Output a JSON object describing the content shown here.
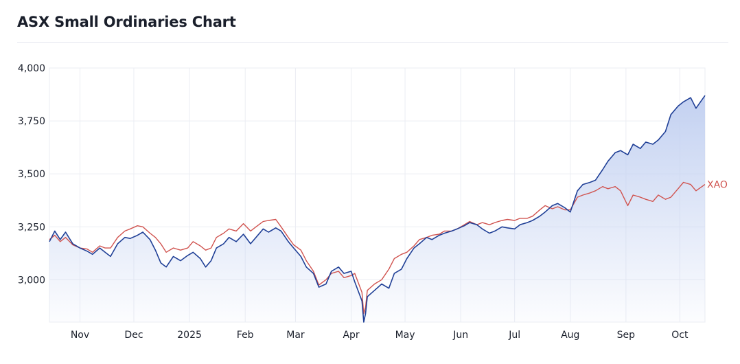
{
  "title": "ASX Small Ordinaries Chart",
  "chart_data": {
    "type": "area",
    "title": "ASX Small Ordinaries Chart",
    "xlabel": "",
    "ylabel": "",
    "x_range": [
      "2024-10-15",
      "2025-10-15"
    ],
    "ylim": [
      2800,
      4000
    ],
    "y_ticks": [
      {
        "value": 4000,
        "label": "4,000"
      },
      {
        "value": 3750,
        "label": "3,750"
      },
      {
        "value": 3500,
        "label": "3,500"
      },
      {
        "value": 3250,
        "label": "3,250"
      },
      {
        "value": 3000,
        "label": "3,000"
      }
    ],
    "x_ticks": [
      {
        "date": "2024-11-01",
        "label": "Nov"
      },
      {
        "date": "2024-12-01",
        "label": "Dec"
      },
      {
        "date": "2025-01-01",
        "label": "2025"
      },
      {
        "date": "2025-02-01",
        "label": "Feb"
      },
      {
        "date": "2025-03-01",
        "label": "Mar"
      },
      {
        "date": "2025-04-01",
        "label": "Apr"
      },
      {
        "date": "2025-05-01",
        "label": "May"
      },
      {
        "date": "2025-06-01",
        "label": "Jun"
      },
      {
        "date": "2025-07-01",
        "label": "Jul"
      },
      {
        "date": "2025-08-01",
        "label": "Aug"
      },
      {
        "date": "2025-09-01",
        "label": "Sep"
      },
      {
        "date": "2025-10-01",
        "label": "Oct"
      }
    ],
    "grid": true,
    "colors": {
      "main": "#1f3f96",
      "compare": "#d0534f",
      "fill_top": "#c3d1f1",
      "grid": "#ebedf3"
    },
    "series": [
      {
        "role": "main",
        "points": [
          [
            "2024-10-15",
            3180
          ],
          [
            "2024-10-18",
            3230
          ],
          [
            "2024-10-21",
            3190
          ],
          [
            "2024-10-24",
            3225
          ],
          [
            "2024-10-28",
            3170
          ],
          [
            "2024-11-01",
            3150
          ],
          [
            "2024-11-05",
            3135
          ],
          [
            "2024-11-08",
            3120
          ],
          [
            "2024-11-12",
            3150
          ],
          [
            "2024-11-15",
            3130
          ],
          [
            "2024-11-18",
            3110
          ],
          [
            "2024-11-22",
            3170
          ],
          [
            "2024-11-26",
            3200
          ],
          [
            "2024-11-29",
            3195
          ],
          [
            "2024-12-03",
            3210
          ],
          [
            "2024-12-06",
            3225
          ],
          [
            "2024-12-10",
            3190
          ],
          [
            "2024-12-13",
            3140
          ],
          [
            "2024-12-16",
            3080
          ],
          [
            "2024-12-19",
            3060
          ],
          [
            "2024-12-23",
            3110
          ],
          [
            "2024-12-27",
            3090
          ],
          [
            "2024-12-31",
            3115
          ],
          [
            "2025-01-03",
            3130
          ],
          [
            "2025-01-07",
            3100
          ],
          [
            "2025-01-10",
            3060
          ],
          [
            "2025-01-13",
            3090
          ],
          [
            "2025-01-16",
            3150
          ],
          [
            "2025-01-20",
            3170
          ],
          [
            "2025-01-23",
            3200
          ],
          [
            "2025-01-27",
            3180
          ],
          [
            "2025-01-31",
            3215
          ],
          [
            "2025-02-04",
            3170
          ],
          [
            "2025-02-07",
            3200
          ],
          [
            "2025-02-11",
            3240
          ],
          [
            "2025-02-14",
            3225
          ],
          [
            "2025-02-18",
            3245
          ],
          [
            "2025-02-21",
            3230
          ],
          [
            "2025-02-25",
            3180
          ],
          [
            "2025-02-28",
            3150
          ],
          [
            "2025-03-04",
            3110
          ],
          [
            "2025-03-07",
            3060
          ],
          [
            "2025-03-11",
            3030
          ],
          [
            "2025-03-14",
            2965
          ],
          [
            "2025-03-18",
            2980
          ],
          [
            "2025-03-21",
            3040
          ],
          [
            "2025-03-25",
            3060
          ],
          [
            "2025-03-28",
            3030
          ],
          [
            "2025-04-01",
            3040
          ],
          [
            "2025-04-03",
            2990
          ],
          [
            "2025-04-07",
            2900
          ],
          [
            "2025-04-08",
            2790
          ],
          [
            "2025-04-09",
            2840
          ],
          [
            "2025-04-10",
            2920
          ],
          [
            "2025-04-14",
            2950
          ],
          [
            "2025-04-18",
            2980
          ],
          [
            "2025-04-22",
            2960
          ],
          [
            "2025-04-25",
            3030
          ],
          [
            "2025-04-29",
            3050
          ],
          [
            "2025-05-02",
            3100
          ],
          [
            "2025-05-06",
            3150
          ],
          [
            "2025-05-09",
            3170
          ],
          [
            "2025-05-13",
            3200
          ],
          [
            "2025-05-16",
            3190
          ],
          [
            "2025-05-20",
            3210
          ],
          [
            "2025-05-23",
            3220
          ],
          [
            "2025-05-27",
            3230
          ],
          [
            "2025-05-30",
            3240
          ],
          [
            "2025-06-03",
            3255
          ],
          [
            "2025-06-06",
            3270
          ],
          [
            "2025-06-10",
            3260
          ],
          [
            "2025-06-13",
            3240
          ],
          [
            "2025-06-17",
            3220
          ],
          [
            "2025-06-20",
            3230
          ],
          [
            "2025-06-24",
            3250
          ],
          [
            "2025-06-27",
            3245
          ],
          [
            "2025-07-01",
            3240
          ],
          [
            "2025-07-04",
            3260
          ],
          [
            "2025-07-08",
            3270
          ],
          [
            "2025-07-11",
            3280
          ],
          [
            "2025-07-15",
            3300
          ],
          [
            "2025-07-18",
            3320
          ],
          [
            "2025-07-22",
            3350
          ],
          [
            "2025-07-25",
            3360
          ],
          [
            "2025-07-29",
            3340
          ],
          [
            "2025-08-01",
            3320
          ],
          [
            "2025-08-05",
            3420
          ],
          [
            "2025-08-08",
            3450
          ],
          [
            "2025-08-12",
            3460
          ],
          [
            "2025-08-15",
            3470
          ],
          [
            "2025-08-19",
            3520
          ],
          [
            "2025-08-22",
            3560
          ],
          [
            "2025-08-26",
            3600
          ],
          [
            "2025-08-29",
            3610
          ],
          [
            "2025-09-02",
            3590
          ],
          [
            "2025-09-05",
            3640
          ],
          [
            "2025-09-09",
            3620
          ],
          [
            "2025-09-12",
            3650
          ],
          [
            "2025-09-16",
            3640
          ],
          [
            "2025-09-19",
            3660
          ],
          [
            "2025-09-23",
            3700
          ],
          [
            "2025-09-26",
            3780
          ],
          [
            "2025-09-30",
            3820
          ],
          [
            "2025-10-03",
            3840
          ],
          [
            "2025-10-07",
            3860
          ],
          [
            "2025-10-10",
            3810
          ],
          [
            "2025-10-15",
            3870
          ]
        ]
      },
      {
        "role": "compare",
        "name": "XAO",
        "points": [
          [
            "2024-10-15",
            3190
          ],
          [
            "2024-10-18",
            3210
          ],
          [
            "2024-10-21",
            3180
          ],
          [
            "2024-10-24",
            3200
          ],
          [
            "2024-10-28",
            3165
          ],
          [
            "2024-11-01",
            3150
          ],
          [
            "2024-11-05",
            3145
          ],
          [
            "2024-11-08",
            3130
          ],
          [
            "2024-11-12",
            3160
          ],
          [
            "2024-11-15",
            3150
          ],
          [
            "2024-11-18",
            3150
          ],
          [
            "2024-11-22",
            3200
          ],
          [
            "2024-11-26",
            3230
          ],
          [
            "2024-11-29",
            3240
          ],
          [
            "2024-12-03",
            3255
          ],
          [
            "2024-12-06",
            3250
          ],
          [
            "2024-12-10",
            3220
          ],
          [
            "2024-12-13",
            3200
          ],
          [
            "2024-12-16",
            3170
          ],
          [
            "2024-12-19",
            3130
          ],
          [
            "2024-12-23",
            3150
          ],
          [
            "2024-12-27",
            3140
          ],
          [
            "2024-12-31",
            3150
          ],
          [
            "2025-01-03",
            3180
          ],
          [
            "2025-01-07",
            3160
          ],
          [
            "2025-01-10",
            3140
          ],
          [
            "2025-01-13",
            3150
          ],
          [
            "2025-01-16",
            3200
          ],
          [
            "2025-01-20",
            3220
          ],
          [
            "2025-01-23",
            3240
          ],
          [
            "2025-01-27",
            3230
          ],
          [
            "2025-01-31",
            3265
          ],
          [
            "2025-02-04",
            3230
          ],
          [
            "2025-02-07",
            3250
          ],
          [
            "2025-02-11",
            3275
          ],
          [
            "2025-02-14",
            3280
          ],
          [
            "2025-02-18",
            3285
          ],
          [
            "2025-02-21",
            3250
          ],
          [
            "2025-02-25",
            3200
          ],
          [
            "2025-02-28",
            3165
          ],
          [
            "2025-03-04",
            3140
          ],
          [
            "2025-03-07",
            3090
          ],
          [
            "2025-03-11",
            3040
          ],
          [
            "2025-03-14",
            2975
          ],
          [
            "2025-03-18",
            3000
          ],
          [
            "2025-03-21",
            3030
          ],
          [
            "2025-03-25",
            3040
          ],
          [
            "2025-03-28",
            3010
          ],
          [
            "2025-04-01",
            3020
          ],
          [
            "2025-04-03",
            3030
          ],
          [
            "2025-04-07",
            2940
          ],
          [
            "2025-04-08",
            2840
          ],
          [
            "2025-04-09",
            2870
          ],
          [
            "2025-04-10",
            2950
          ],
          [
            "2025-04-14",
            2980
          ],
          [
            "2025-04-18",
            3000
          ],
          [
            "2025-04-22",
            3050
          ],
          [
            "2025-04-25",
            3100
          ],
          [
            "2025-04-29",
            3120
          ],
          [
            "2025-05-02",
            3130
          ],
          [
            "2025-05-06",
            3160
          ],
          [
            "2025-05-09",
            3190
          ],
          [
            "2025-05-13",
            3200
          ],
          [
            "2025-05-16",
            3210
          ],
          [
            "2025-05-20",
            3215
          ],
          [
            "2025-05-23",
            3230
          ],
          [
            "2025-05-27",
            3230
          ],
          [
            "2025-05-30",
            3240
          ],
          [
            "2025-06-03",
            3260
          ],
          [
            "2025-06-06",
            3275
          ],
          [
            "2025-06-10",
            3260
          ],
          [
            "2025-06-13",
            3270
          ],
          [
            "2025-06-17",
            3260
          ],
          [
            "2025-06-20",
            3270
          ],
          [
            "2025-06-24",
            3280
          ],
          [
            "2025-06-27",
            3285
          ],
          [
            "2025-07-01",
            3280
          ],
          [
            "2025-07-04",
            3290
          ],
          [
            "2025-07-08",
            3290
          ],
          [
            "2025-07-11",
            3300
          ],
          [
            "2025-07-15",
            3330
          ],
          [
            "2025-07-18",
            3350
          ],
          [
            "2025-07-22",
            3335
          ],
          [
            "2025-07-25",
            3345
          ],
          [
            "2025-07-29",
            3330
          ],
          [
            "2025-08-01",
            3330
          ],
          [
            "2025-08-05",
            3390
          ],
          [
            "2025-08-08",
            3400
          ],
          [
            "2025-08-12",
            3410
          ],
          [
            "2025-08-15",
            3420
          ],
          [
            "2025-08-19",
            3440
          ],
          [
            "2025-08-22",
            3430
          ],
          [
            "2025-08-26",
            3440
          ],
          [
            "2025-08-29",
            3420
          ],
          [
            "2025-09-02",
            3350
          ],
          [
            "2025-09-05",
            3400
          ],
          [
            "2025-09-09",
            3390
          ],
          [
            "2025-09-12",
            3380
          ],
          [
            "2025-09-16",
            3370
          ],
          [
            "2025-09-19",
            3400
          ],
          [
            "2025-09-23",
            3380
          ],
          [
            "2025-09-26",
            3390
          ],
          [
            "2025-09-30",
            3430
          ],
          [
            "2025-10-03",
            3460
          ],
          [
            "2025-10-07",
            3450
          ],
          [
            "2025-10-10",
            3420
          ],
          [
            "2025-10-15",
            3450
          ]
        ]
      }
    ]
  }
}
